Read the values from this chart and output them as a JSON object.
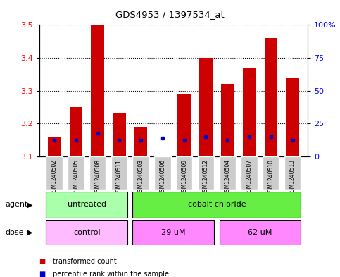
{
  "title": "GDS4953 / 1397534_at",
  "samples": [
    "GSM1240502",
    "GSM1240505",
    "GSM1240508",
    "GSM1240511",
    "GSM1240503",
    "GSM1240506",
    "GSM1240509",
    "GSM1240512",
    "GSM1240504",
    "GSM1240507",
    "GSM1240510",
    "GSM1240513"
  ],
  "bar_values": [
    3.16,
    3.25,
    3.5,
    3.23,
    3.19,
    3.1,
    3.29,
    3.4,
    3.32,
    3.37,
    3.46,
    3.34
  ],
  "percentile_values": [
    3.15,
    3.15,
    3.17,
    3.15,
    3.15,
    3.155,
    3.15,
    3.16,
    3.15,
    3.16,
    3.16,
    3.15
  ],
  "y_min": 3.1,
  "y_max": 3.5,
  "y_ticks": [
    3.1,
    3.2,
    3.3,
    3.4,
    3.5
  ],
  "right_y_ticks": [
    0,
    25,
    50,
    75,
    100
  ],
  "bar_color": "#CC0000",
  "percentile_color": "#0000CC",
  "agent_boxes": [
    {
      "text": "untreated",
      "start": 0,
      "end": 3,
      "color": "#AAFFAA"
    },
    {
      "text": "cobalt chloride",
      "start": 4,
      "end": 11,
      "color": "#66EE44"
    }
  ],
  "dose_boxes": [
    {
      "text": "control",
      "start": 0,
      "end": 3,
      "color": "#FFBBFF"
    },
    {
      "text": "29 uM",
      "start": 4,
      "end": 7,
      "color": "#FF88FF"
    },
    {
      "text": "62 uM",
      "start": 8,
      "end": 11,
      "color": "#FF88FF"
    }
  ],
  "legend_items": [
    {
      "label": "transformed count",
      "color": "#CC0000"
    },
    {
      "label": "percentile rank within the sample",
      "color": "#0000CC"
    }
  ],
  "bar_width": 0.6,
  "plot_bg_color": "#FFFFFF",
  "xticklabel_bg": "#CCCCCC"
}
